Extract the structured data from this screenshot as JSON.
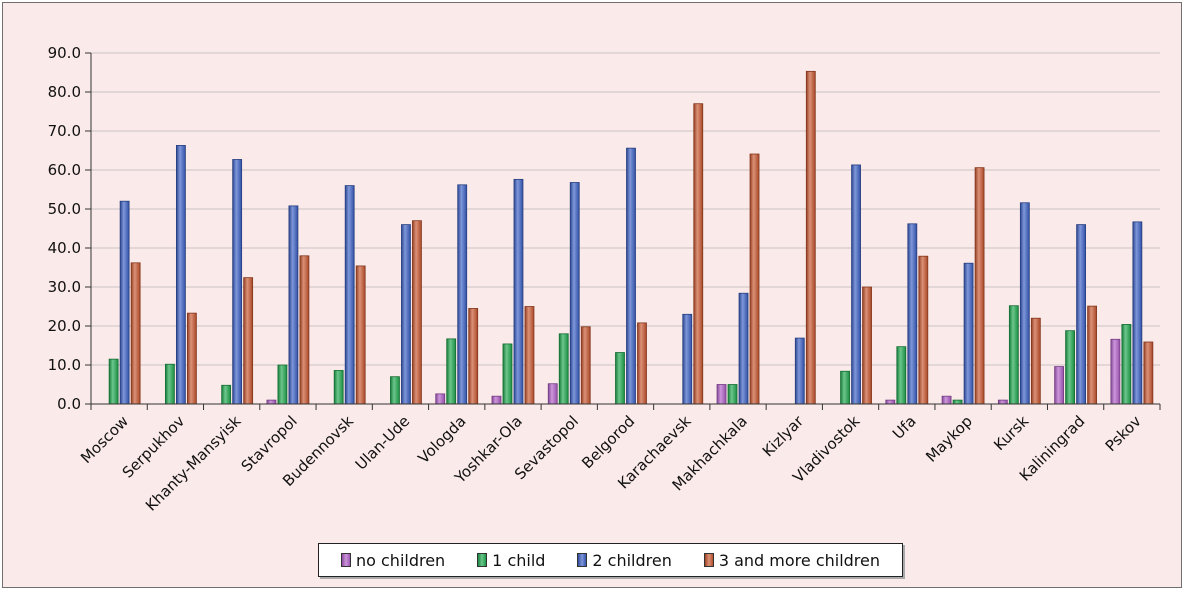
{
  "chart_data": {
    "type": "bar",
    "categories": [
      "Moscow",
      "Serpukhov",
      "Khanty-Mansyisk",
      "Stavropol",
      "Budennovsk",
      "Ulan-Ude",
      "Vologda",
      "Yoshkar-Ola",
      "Sevastopol",
      "Belgorod",
      "Karachaevsk",
      "Makhachkala",
      "Kizlyar",
      "Vladivostok",
      "Ufa",
      "Maykop",
      "Kursk",
      "Kaliningrad",
      "Pskov"
    ],
    "series": [
      {
        "name": "no children",
        "color": "#b05ec8",
        "values": [
          0,
          0,
          0,
          1,
          0,
          0,
          2.6,
          2,
          5.2,
          0,
          0,
          5,
          0,
          0,
          1,
          2,
          1,
          9.6,
          16.6
        ]
      },
      {
        "name": "1 child",
        "color": "#1ea84e",
        "values": [
          11.5,
          10.2,
          4.8,
          10,
          8.6,
          7,
          16.7,
          15.4,
          18,
          13.2,
          0,
          5,
          0,
          8.4,
          14.7,
          1,
          25.2,
          18.8,
          20.4
        ]
      },
      {
        "name": "2 children",
        "color": "#3a5fc4",
        "values": [
          52,
          66.3,
          62.7,
          50.8,
          56,
          46,
          56.2,
          57.6,
          56.8,
          65.6,
          23,
          28.4,
          16.9,
          61.3,
          46.2,
          36.1,
          51.6,
          46,
          46.7
        ]
      },
      {
        "name": "3 and more children",
        "color": "#c8552e",
        "values": [
          36.2,
          23.3,
          32.4,
          38,
          35.4,
          47,
          24.5,
          25,
          19.8,
          20.8,
          77,
          64.1,
          85.3,
          30,
          37.9,
          60.6,
          22,
          25.1,
          15.9
        ]
      }
    ],
    "y_ticks": [
      "0.0",
      "10.0",
      "20.0",
      "30.0",
      "40.0",
      "50.0",
      "60.0",
      "70.0",
      "80.0",
      "90.0"
    ],
    "ylim": [
      0,
      90
    ],
    "grid": true,
    "legend_position": "bottom"
  }
}
